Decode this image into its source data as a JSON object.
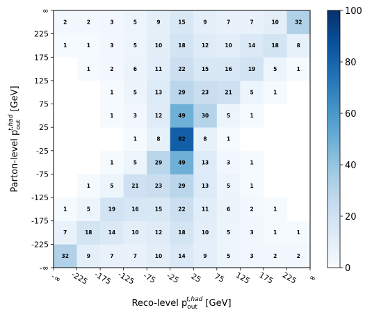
{
  "chart_data": {
    "type": "heatmap",
    "title": "",
    "xlabel": {
      "main": "Reco-level p",
      "sub": "out",
      "sup": "t,had",
      "unit": " [GeV]"
    },
    "ylabel": {
      "main": "Parton-level p",
      "sub": "out",
      "sup": "t,had",
      "unit": " [GeV]"
    },
    "x_tick_labels": [
      "-∞",
      "-225",
      "-175",
      "-125",
      "-75",
      "-25",
      "25",
      "75",
      "125",
      "175",
      "225",
      "∞"
    ],
    "y_tick_labels": [
      "-∞",
      "-225",
      "-175",
      "-125",
      "-75",
      "-25",
      "25",
      "75",
      "125",
      "175",
      "225",
      "∞"
    ],
    "matrix": [
      [
        32,
        9,
        7,
        7,
        10,
        14,
        9,
        5,
        3,
        2,
        2
      ],
      [
        7,
        18,
        14,
        10,
        12,
        18,
        10,
        5,
        3,
        1,
        1
      ],
      [
        1,
        5,
        19,
        16,
        15,
        22,
        11,
        6,
        2,
        1,
        null
      ],
      [
        null,
        1,
        5,
        21,
        23,
        29,
        13,
        5,
        1,
        null,
        null
      ],
      [
        null,
        null,
        1,
        5,
        29,
        49,
        13,
        3,
        1,
        null,
        null
      ],
      [
        null,
        null,
        null,
        1,
        8,
        82,
        8,
        1,
        null,
        null,
        null
      ],
      [
        null,
        null,
        1,
        3,
        12,
        49,
        30,
        5,
        1,
        null,
        null
      ],
      [
        null,
        null,
        1,
        5,
        13,
        29,
        23,
        21,
        5,
        1,
        null
      ],
      [
        null,
        1,
        2,
        6,
        11,
        22,
        15,
        16,
        19,
        5,
        1
      ],
      [
        1,
        1,
        3,
        5,
        10,
        18,
        12,
        10,
        14,
        18,
        8
      ],
      [
        2,
        2,
        3,
        5,
        9,
        15,
        9,
        7,
        7,
        10,
        32
      ]
    ],
    "matrix_row_order": "bottom-to-top",
    "colorbar": {
      "min": 0,
      "max": 100,
      "ticks": [
        0,
        20,
        40,
        60,
        80,
        100
      ],
      "colormap": "Blues"
    }
  }
}
